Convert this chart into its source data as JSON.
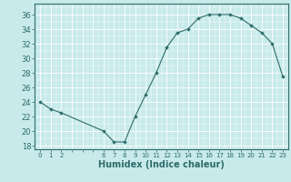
{
  "x": [
    0,
    1,
    2,
    6,
    7,
    8,
    9,
    10,
    11,
    12,
    13,
    14,
    15,
    16,
    17,
    18,
    19,
    20,
    21,
    22,
    23
  ],
  "y": [
    24,
    23,
    22.5,
    20,
    18.5,
    18.5,
    22,
    25,
    28,
    31.5,
    33.5,
    34,
    35.5,
    36,
    36,
    36,
    35.5,
    34.5,
    33.5,
    32,
    27.5
  ],
  "line_color": "#2e6b6b",
  "marker": "D",
  "marker_size": 2.0,
  "bg_color": "#c8eaea",
  "xlabel": "Humidex (Indice chaleur)",
  "xlabel_fontsize": 7,
  "ylabel_ticks": [
    18,
    20,
    22,
    24,
    26,
    28,
    30,
    32,
    34,
    36
  ],
  "ytick_fontsize": 6,
  "xtick_fontsize": 5,
  "xlim": [
    -0.5,
    23.5
  ],
  "ylim": [
    17.5,
    37.5
  ],
  "grid_major_color": "#b8d8d8",
  "grid_minor_color": "#d0e8e8"
}
